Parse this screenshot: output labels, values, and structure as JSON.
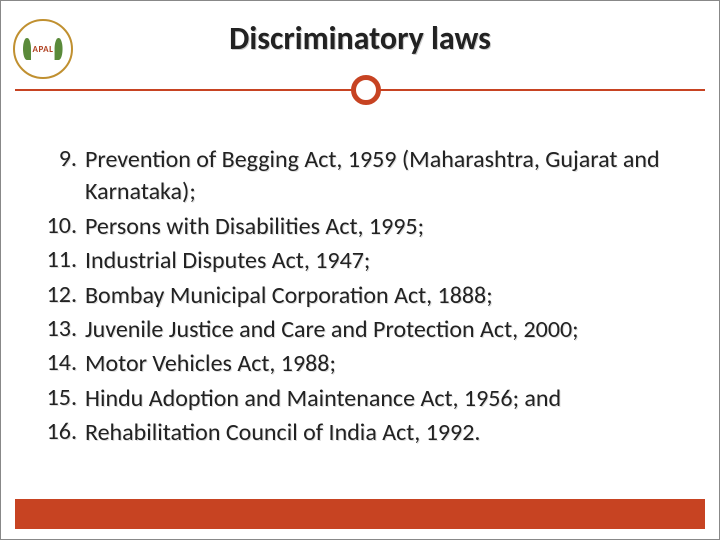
{
  "logo": {
    "text": "APAL"
  },
  "title": "Discriminatory laws",
  "items": [
    {
      "num": "9.",
      "text": "Prevention of Begging Act, 1959 (Maharashtra, Gujarat and Karnataka);"
    },
    {
      "num": "10.",
      "text": "Persons with Disabilities Act, 1995;"
    },
    {
      "num": "11.",
      "text": "Industrial Disputes Act, 1947;"
    },
    {
      "num": "12.",
      "text": "Bombay Municipal Corporation Act, 1888;"
    },
    {
      "num": "13.",
      "text": "Juvenile Justice and Care and Protection Act, 2000;"
    },
    {
      "num": "14.",
      "text": "Motor Vehicles Act, 1988;"
    },
    {
      "num": "15.",
      "text": "Hindu Adoption and Maintenance Act, 1956; and"
    },
    {
      "num": "16.",
      "text": "Rehabilitation Council of India Act, 1992."
    }
  ],
  "colors": {
    "accent": "#c74322",
    "text": "#222222",
    "background": "#ffffff"
  }
}
